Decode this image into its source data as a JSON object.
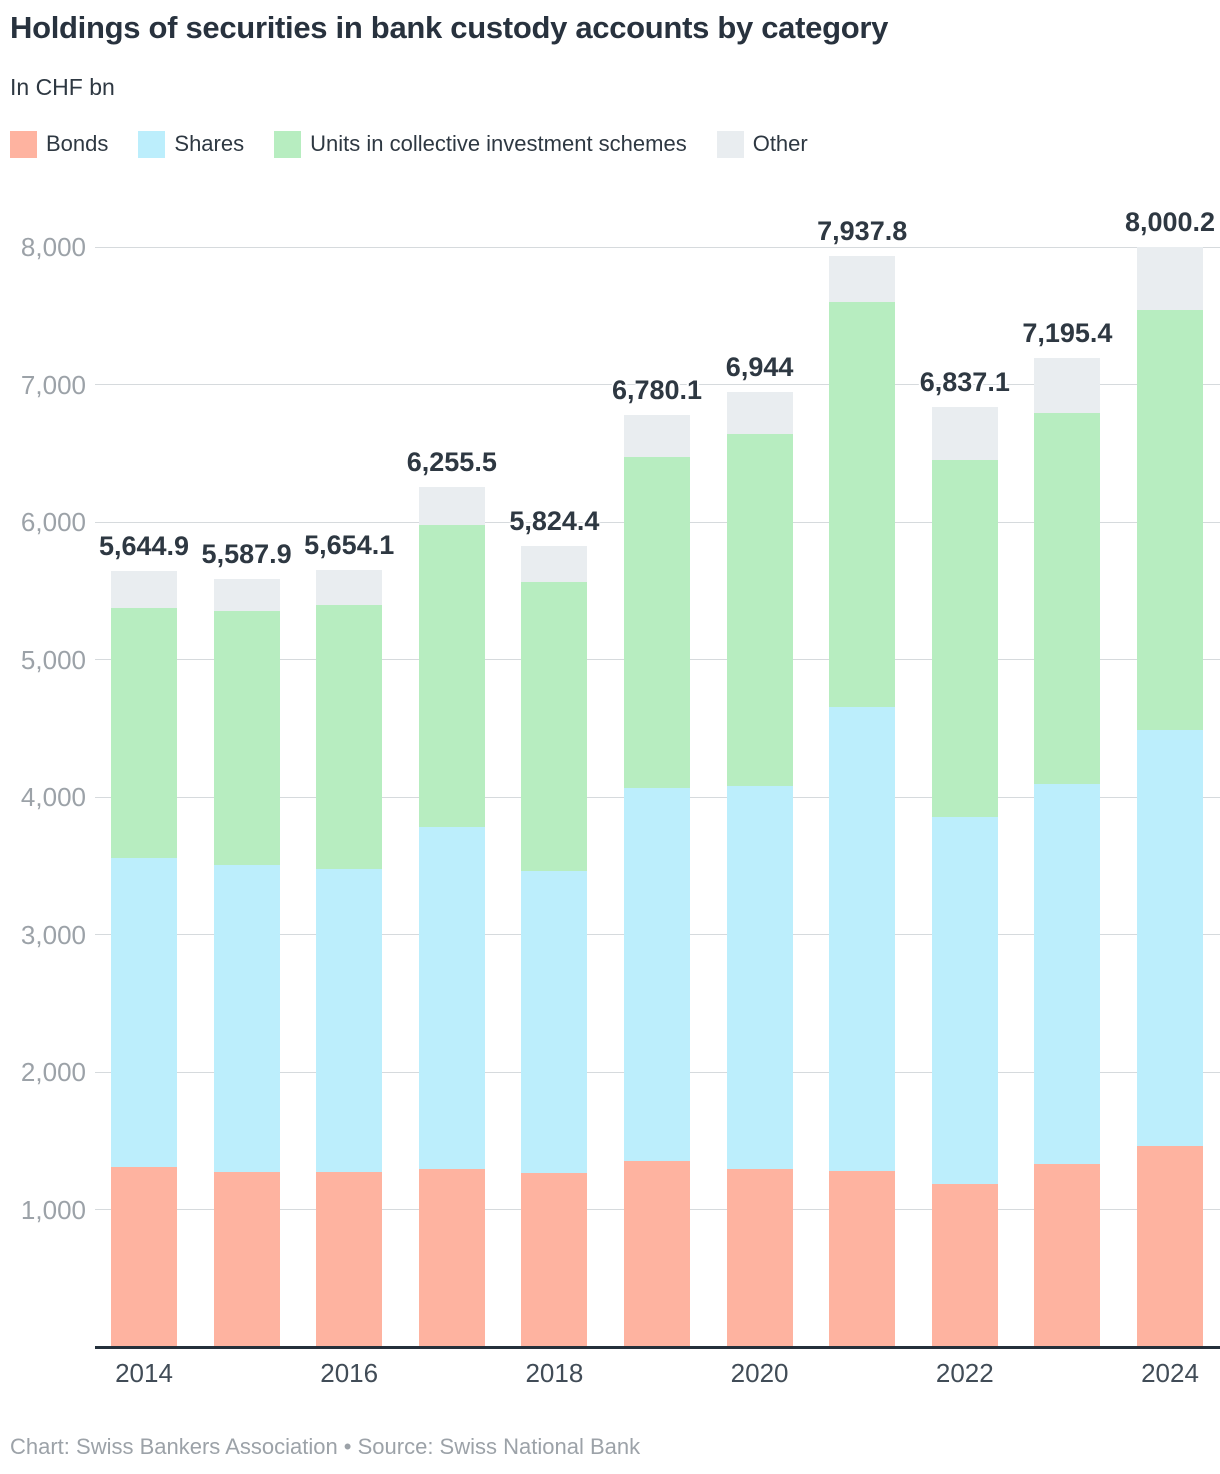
{
  "header": {
    "title": "Holdings of securities in bank custody accounts by category",
    "subtitle": "In CHF bn"
  },
  "legend": {
    "items": [
      {
        "label": "Bonds",
        "color": "#feb3a0"
      },
      {
        "label": "Shares",
        "color": "#bceefc"
      },
      {
        "label": "Units in collective investment schemes",
        "color": "#b7edc0"
      },
      {
        "label": "Other",
        "color": "#e9edf0"
      }
    ]
  },
  "colors": {
    "bonds": "#feb3a0",
    "shares": "#bceefc",
    "units": "#b7edc0",
    "other": "#e9edf0",
    "gridline": "#d6dadd",
    "axis_line": "#24303b",
    "dark_text": "#2e3842",
    "y_tick_text": "#9ca2a8",
    "x_tick_text": "#414c57",
    "footer_text": "#9ca2a8"
  },
  "chart_data": {
    "type": "bar",
    "stacked": true,
    "title": "Holdings of securities in bank custody accounts by category",
    "subtitle": "In CHF bn",
    "xlabel": "",
    "ylabel": "CHF bn",
    "ylim": [
      0,
      8000
    ],
    "grid": true,
    "legend_position": "top",
    "categories": [
      "2014",
      "2015",
      "2016",
      "2017",
      "2018",
      "2019",
      "2020",
      "2021",
      "2022",
      "2023",
      "2024"
    ],
    "x_axis_shown_labels": [
      "2014",
      "2016",
      "2018",
      "2020",
      "2022",
      "2024"
    ],
    "y_ticks": [
      {
        "value": 1000,
        "label": "1,000"
      },
      {
        "value": 2000,
        "label": "2,000"
      },
      {
        "value": 3000,
        "label": "3,000"
      },
      {
        "value": 4000,
        "label": "4,000"
      },
      {
        "value": 5000,
        "label": "5,000"
      },
      {
        "value": 6000,
        "label": "6,000"
      },
      {
        "value": 7000,
        "label": "7,000"
      },
      {
        "value": 8000,
        "label": "8,000"
      }
    ],
    "series": [
      {
        "name": "Bonds",
        "values": [
          1310.0,
          1270.0,
          1276.0,
          1295.0,
          1269.0,
          1352.0,
          1292.0,
          1281.0,
          1189.0,
          1332.0,
          1460.0
        ]
      },
      {
        "name": "Shares",
        "values": [
          2246.0,
          2235.0,
          2200.0,
          2487.0,
          2193.0,
          2713.0,
          2788.0,
          3374.0,
          2666.0,
          2763.0,
          3027.0
        ]
      },
      {
        "name": "Units in collective investment schemes",
        "values": [
          1816.9,
          1847.9,
          1922.1,
          2199.5,
          2099.4,
          2410.1,
          2560.0,
          2944.8,
          2595.1,
          2695.4,
          3058.2
        ]
      },
      {
        "name": "Other",
        "values": [
          272.0,
          235.0,
          256.0,
          274.0,
          263.0,
          305.0,
          304.0,
          338.0,
          387.0,
          405.0,
          455.0
        ]
      }
    ],
    "totals": [
      5644.9,
      5587.9,
      5654.1,
      6255.5,
      5824.4,
      6780.1,
      6944.0,
      7937.8,
      6837.1,
      7195.4,
      8000.2
    ],
    "total_labels": [
      "5,644.9",
      "5,587.9",
      "5,654.1",
      "6,255.5",
      "5,824.4",
      "6,780.1",
      "6,944",
      "7,937.8",
      "6,837.1",
      "7,195.4",
      "8,000.2"
    ]
  },
  "footer": {
    "text": "Chart: Swiss Bankers Association • Source: Swiss National Bank"
  }
}
